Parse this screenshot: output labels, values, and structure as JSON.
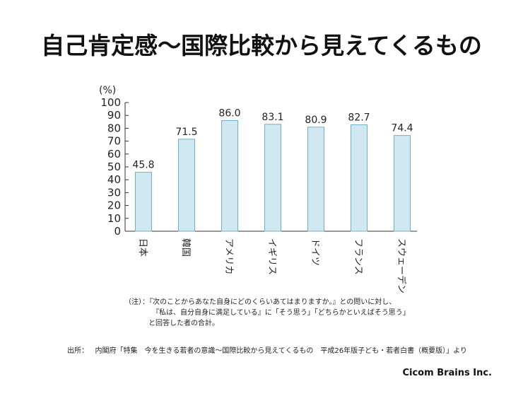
{
  "page_title": "自己肯定感～国際比較から見えてくるもの",
  "chart_data": {
    "type": "bar",
    "unit_label": "(%)",
    "categories": [
      "日本",
      "韓国",
      "アメリカ",
      "イギリス",
      "ドイツ",
      "フランス",
      "スウェーデン"
    ],
    "values": [
      45.8,
      71.5,
      86.0,
      83.1,
      80.9,
      82.7,
      74.4
    ],
    "value_labels": [
      "45.8",
      "71.5",
      "86.0",
      "83.1",
      "80.9",
      "82.7",
      "74.4"
    ],
    "ylim": [
      0,
      100
    ],
    "yticks": [
      0,
      10,
      20,
      30,
      40,
      50,
      60,
      70,
      80,
      90,
      100
    ],
    "grid": false,
    "bar_color": "#cfe8f2",
    "bar_edge_color": "#6fb0c8"
  },
  "notes": {
    "note_prefix": "（注）：",
    "note_line1": "『次のことからあなた自身にどのくらいあてはまりますか。』との問いに対し、",
    "note_line2": "『私は、自分自身に満足している』に「そう思う」「どちらかといえばそう思う」",
    "note_line3": "と回答した者の合計。",
    "source_prefix": "出所：",
    "source_text": "内閣府「特集　今を生きる若者の意識～国際比較から見えてくるもの　平成26年版子ども・若者白書（概要版）」より"
  },
  "credit": "Cicom Brains Inc."
}
